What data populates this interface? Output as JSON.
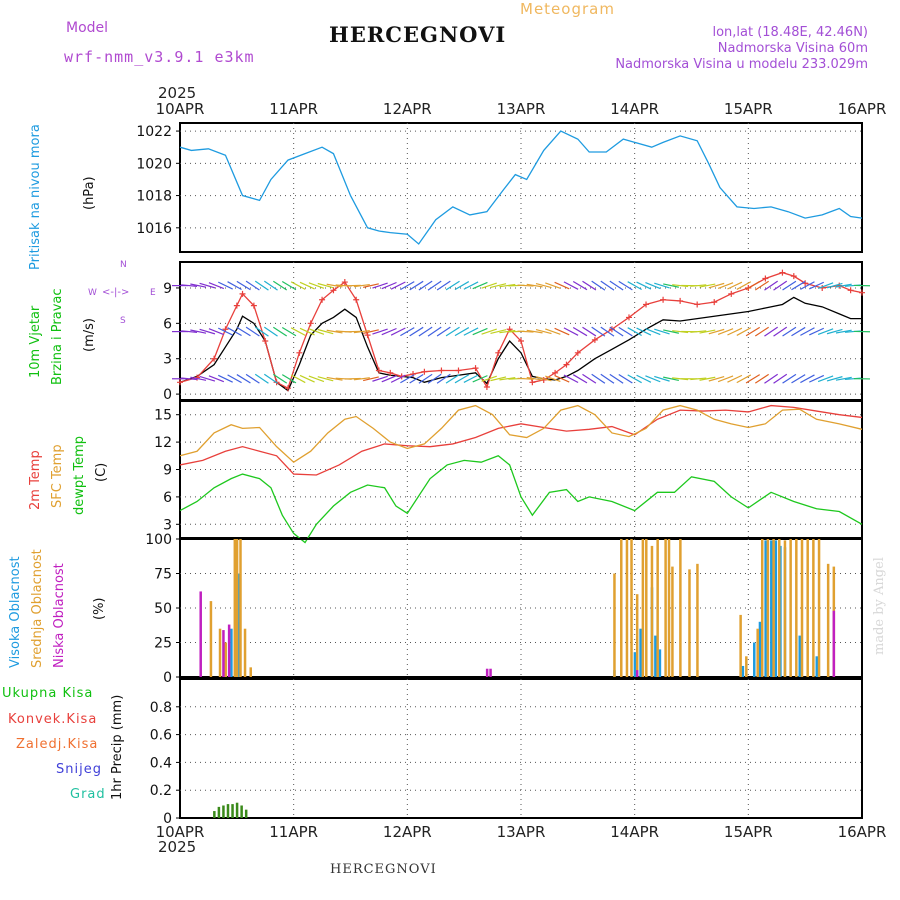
{
  "header": {
    "model_label": "Model",
    "model_name": "wrf-nmm_v3.9.1 e3km",
    "title": "HERCEGNOVI",
    "meteogram_label": "Meteogram",
    "lonlat": "lon,lat (18.48E, 42.46N)",
    "altitude": "Nadmorska Visina 60m",
    "model_altitude": "Nadmorska Visina u modelu 233.029m",
    "year_top": "2025"
  },
  "footer": {
    "year_bottom": "2025",
    "station": "HERCEGNOVI",
    "credit": "made by Angel"
  },
  "colors": {
    "pressure": "#1e9be0",
    "temp2m": "#e8403c",
    "sfc_temp": "#e0a030",
    "dewpt": "#1ec81e",
    "wind_speed": "#000000",
    "wind_gust": "#e8403c",
    "cloud_high": "#1e9be0",
    "cloud_mid": "#e0a030",
    "cloud_low": "#c020c0",
    "precip": "#3a8a1a",
    "precip2": "#c85020"
  },
  "chart_data": [
    {
      "type": "line",
      "panel": "pressure",
      "title": "Pritisak na nivou mora",
      "ylabel": "(hPa)",
      "x_tick_labels": [
        "10APR",
        "11APR",
        "12APR",
        "13APR",
        "14APR",
        "15APR",
        "16APR"
      ],
      "xlim_days": [
        0,
        6
      ],
      "ylim": [
        1014.5,
        1022.5
      ],
      "y_ticks": [
        1016,
        1018,
        1020,
        1022
      ],
      "series": [
        {
          "name": "Pritisak na nivou mora",
          "color": "#1e9be0",
          "x": [
            0,
            0.1,
            0.25,
            0.4,
            0.55,
            0.7,
            0.8,
            0.95,
            1.1,
            1.25,
            1.35,
            1.5,
            1.65,
            1.75,
            1.85,
            2.0,
            2.1,
            2.25,
            2.4,
            2.55,
            2.7,
            2.85,
            2.95,
            3.05,
            3.2,
            3.35,
            3.5,
            3.6,
            3.75,
            3.9,
            4.0,
            4.15,
            4.25,
            4.4,
            4.55,
            4.65,
            4.75,
            4.9,
            5.05,
            5.2,
            5.35,
            5.5,
            5.65,
            5.8,
            5.9,
            6.0
          ],
          "y": [
            1021.0,
            1020.8,
            1020.9,
            1020.5,
            1018.0,
            1017.7,
            1019.0,
            1020.2,
            1020.6,
            1021.0,
            1020.6,
            1018.0,
            1016.0,
            1015.8,
            1015.7,
            1015.6,
            1015.0,
            1016.5,
            1017.3,
            1016.8,
            1017.0,
            1018.4,
            1019.3,
            1019.0,
            1020.8,
            1022.0,
            1021.5,
            1020.7,
            1020.7,
            1021.5,
            1021.3,
            1021.0,
            1021.3,
            1021.7,
            1021.4,
            1020.0,
            1018.5,
            1017.3,
            1017.2,
            1017.3,
            1017.0,
            1016.6,
            1016.8,
            1017.2,
            1016.7,
            1016.6
          ]
        }
      ]
    },
    {
      "type": "line",
      "panel": "wind",
      "title": "10m Vjetar Brzina i Pravac",
      "ylabel": "(m/s)",
      "compass": {
        "n": "N",
        "w": "W",
        "e": "E",
        "s": "S"
      },
      "ylim": [
        -0.5,
        11.2
      ],
      "y_ticks": [
        0,
        3,
        6,
        9
      ],
      "series": [
        {
          "name": "Brzina",
          "color": "#000000",
          "x": [
            0,
            0.15,
            0.3,
            0.4,
            0.5,
            0.55,
            0.65,
            0.75,
            0.85,
            0.95,
            1.05,
            1.15,
            1.25,
            1.35,
            1.45,
            1.55,
            1.65,
            1.75,
            1.85,
            1.95,
            2.05,
            2.15,
            2.3,
            2.45,
            2.6,
            2.7,
            2.8,
            2.9,
            3.0,
            3.1,
            3.2,
            3.3,
            3.4,
            3.5,
            3.65,
            3.8,
            3.95,
            4.1,
            4.25,
            4.4,
            4.55,
            4.7,
            4.85,
            5.0,
            5.15,
            5.3,
            5.4,
            5.5,
            5.65,
            5.8,
            5.9,
            6.0
          ],
          "y": [
            1.0,
            1.5,
            2.5,
            4.0,
            5.5,
            6.6,
            6.0,
            4.5,
            1.0,
            0.3,
            2.5,
            5.0,
            6.0,
            6.5,
            7.2,
            6.5,
            4.0,
            1.8,
            1.6,
            1.5,
            1.4,
            1.0,
            1.4,
            1.6,
            1.8,
            0.9,
            3.0,
            4.5,
            3.5,
            1.5,
            1.3,
            1.2,
            1.5,
            2.0,
            3.0,
            3.8,
            4.6,
            5.5,
            6.3,
            6.2,
            6.4,
            6.6,
            6.8,
            7.0,
            7.3,
            7.6,
            8.2,
            7.7,
            7.4,
            6.8,
            6.4,
            6.4
          ]
        },
        {
          "name": "Udar",
          "color": "#e8403c",
          "x": [
            0,
            0.15,
            0.3,
            0.4,
            0.5,
            0.55,
            0.65,
            0.75,
            0.85,
            0.95,
            1.05,
            1.15,
            1.25,
            1.35,
            1.45,
            1.55,
            1.65,
            1.75,
            1.85,
            1.95,
            2.05,
            2.15,
            2.3,
            2.45,
            2.6,
            2.7,
            2.8,
            2.9,
            3.0,
            3.1,
            3.2,
            3.3,
            3.4,
            3.5,
            3.65,
            3.8,
            3.95,
            4.1,
            4.25,
            4.4,
            4.55,
            4.7,
            4.85,
            5.0,
            5.15,
            5.3,
            5.4,
            5.5,
            5.65,
            5.8,
            5.9,
            6.0
          ],
          "y": [
            1.0,
            1.4,
            3.0,
            5.5,
            7.5,
            8.5,
            7.5,
            4.5,
            1.0,
            0.5,
            3.5,
            6.0,
            8.0,
            8.8,
            9.5,
            8.0,
            5.0,
            2.0,
            1.8,
            1.5,
            1.7,
            1.9,
            2.0,
            2.0,
            2.2,
            0.6,
            3.5,
            5.5,
            4.5,
            1.0,
            1.2,
            1.8,
            2.5,
            3.5,
            4.6,
            5.5,
            6.5,
            7.6,
            8.0,
            7.9,
            7.6,
            7.8,
            8.5,
            9.0,
            9.8,
            10.3,
            10.0,
            9.4,
            9.0,
            9.2,
            8.8,
            8.6
          ]
        }
      ]
    },
    {
      "type": "line",
      "panel": "temperature",
      "title": "2m Temp / SFC Temp / dewpt Temp",
      "ylabel": "(C)",
      "ylim": [
        1.5,
        16.5
      ],
      "y_ticks": [
        3,
        6,
        9,
        12,
        15
      ],
      "series": [
        {
          "name": "2m Temp",
          "color": "#e8403c",
          "x": [
            0,
            0.2,
            0.4,
            0.55,
            0.7,
            0.85,
            1.0,
            1.2,
            1.4,
            1.6,
            1.8,
            2.0,
            2.2,
            2.4,
            2.6,
            2.8,
            3.0,
            3.2,
            3.4,
            3.6,
            3.8,
            4.0,
            4.2,
            4.4,
            4.6,
            4.8,
            5.0,
            5.2,
            5.4,
            5.6,
            5.8,
            6.0
          ],
          "y": [
            9.5,
            10.0,
            11.0,
            11.5,
            11.0,
            10.5,
            8.5,
            8.4,
            9.5,
            11.0,
            11.8,
            11.6,
            11.5,
            11.8,
            12.5,
            13.5,
            14.0,
            13.6,
            13.2,
            13.4,
            13.7,
            12.8,
            14.5,
            15.5,
            15.4,
            15.5,
            15.3,
            16.0,
            15.8,
            15.4,
            15.0,
            14.7
          ]
        },
        {
          "name": "SFC Temp",
          "color": "#e0a030",
          "x": [
            0,
            0.15,
            0.3,
            0.45,
            0.55,
            0.7,
            0.85,
            1.0,
            1.15,
            1.3,
            1.45,
            1.55,
            1.7,
            1.85,
            2.0,
            2.15,
            2.3,
            2.45,
            2.6,
            2.75,
            2.9,
            3.05,
            3.2,
            3.35,
            3.5,
            3.65,
            3.8,
            3.95,
            4.1,
            4.25,
            4.4,
            4.55,
            4.7,
            4.85,
            5.0,
            5.15,
            5.3,
            5.45,
            5.6,
            5.8,
            6.0
          ],
          "y": [
            10.5,
            11.0,
            13.0,
            13.9,
            13.5,
            13.6,
            11.5,
            9.8,
            11.0,
            13.0,
            14.5,
            14.8,
            13.5,
            12.0,
            11.3,
            11.8,
            13.5,
            15.5,
            16.0,
            15.0,
            12.8,
            12.5,
            13.5,
            15.5,
            16.0,
            15.0,
            13.0,
            12.6,
            13.5,
            15.5,
            16.0,
            15.5,
            14.5,
            14.0,
            13.6,
            14.0,
            15.5,
            15.6,
            14.5,
            14.0,
            13.4
          ]
        },
        {
          "name": "dewpt Temp",
          "color": "#1ec81e",
          "x": [
            0,
            0.15,
            0.3,
            0.45,
            0.55,
            0.7,
            0.8,
            0.9,
            1.0,
            1.1,
            1.2,
            1.35,
            1.5,
            1.65,
            1.8,
            1.9,
            2.0,
            2.2,
            2.35,
            2.5,
            2.65,
            2.8,
            2.9,
            3.0,
            3.1,
            3.25,
            3.4,
            3.5,
            3.6,
            3.8,
            4.0,
            4.2,
            4.35,
            4.5,
            4.7,
            4.85,
            5.0,
            5.2,
            5.4,
            5.6,
            5.8,
            6.0
          ],
          "y": [
            4.5,
            5.5,
            7.0,
            8.0,
            8.5,
            8.0,
            7.0,
            4.0,
            2.0,
            1.0,
            3.0,
            5.0,
            6.5,
            7.3,
            7.0,
            5.0,
            4.2,
            8.0,
            9.5,
            10.0,
            9.8,
            10.5,
            9.5,
            6.0,
            4.0,
            6.5,
            6.8,
            5.5,
            6.0,
            5.5,
            4.5,
            6.5,
            6.5,
            8.2,
            7.7,
            6.0,
            4.8,
            6.5,
            5.5,
            4.7,
            4.4,
            3.0
          ]
        }
      ]
    },
    {
      "type": "bar",
      "panel": "clouds",
      "title": "Visoka Oblacnost / Srednja Oblacnost / Niska Oblacnost",
      "ylabel": "(%)",
      "ylim": [
        0,
        100
      ],
      "y_ticks": [
        0,
        25,
        50,
        75,
        100
      ],
      "series": [
        {
          "name": "Visoka Oblacnost",
          "color": "#1e9be0",
          "x": [
            0.45,
            0.5,
            0.52,
            3.82,
            4.0,
            4.05,
            4.15,
            4.18,
            4.22,
            4.95,
            5.05,
            5.1,
            5.15,
            5.2,
            5.24,
            5.28,
            5.32,
            5.45,
            5.6
          ],
          "y": [
            35,
            40,
            75,
            5,
            18,
            35,
            65,
            30,
            20,
            8,
            25,
            40,
            99,
            99,
            99,
            95,
            94,
            30,
            15
          ]
        },
        {
          "name": "Srednja Oblacnost",
          "color": "#e0a030",
          "x": [
            0.27,
            0.35,
            0.4,
            0.48,
            0.5,
            0.53,
            0.57,
            0.62,
            3.82,
            3.88,
            3.93,
            3.97,
            4.02,
            4.07,
            4.1,
            4.15,
            4.2,
            4.27,
            4.3,
            4.33,
            4.4,
            4.48,
            4.55,
            4.93,
            4.98,
            5.08,
            5.12,
            5.17,
            5.22,
            5.27,
            5.32,
            5.37,
            5.42,
            5.47,
            5.52,
            5.57,
            5.62,
            5.7,
            5.75
          ],
          "y": [
            55,
            35,
            25,
            100,
            100,
            100,
            35,
            7,
            75,
            100,
            100,
            100,
            60,
            100,
            100,
            95,
            100,
            100,
            100,
            80,
            100,
            78,
            82,
            45,
            15,
            35,
            100,
            100,
            100,
            100,
            99,
            100,
            100,
            100,
            100,
            100,
            100,
            82,
            80
          ]
        },
        {
          "name": "Niska Oblacnost",
          "color": "#c020c0",
          "x": [
            0.18,
            0.38,
            0.43,
            2.7,
            2.73,
            4.02,
            5.75
          ],
          "y": [
            62,
            34,
            38,
            6,
            6,
            5,
            48
          ]
        }
      ]
    },
    {
      "type": "bar",
      "panel": "precip",
      "title": "Ukupna Kisa / Konvek.Kisa / Zaledj.Kisa / Snijeg / Grad",
      "ylabel": "1hr Precip (mm)",
      "ylim": [
        0,
        1.0
      ],
      "y_ticks": [
        0,
        0.2,
        0.4,
        0.6,
        0.8
      ],
      "y_tick_labels": [
        "0",
        "0.2",
        "0.4",
        "0.6",
        "0.8"
      ],
      "series": [
        {
          "name": "Ukupna Kisa",
          "color": "#3a8a1a",
          "x": [
            0.3,
            0.34,
            0.38,
            0.42,
            0.46,
            0.5,
            0.54,
            0.58
          ],
          "y": [
            0.05,
            0.08,
            0.09,
            0.1,
            0.1,
            0.11,
            0.09,
            0.06
          ]
        }
      ]
    }
  ],
  "side_labels": {
    "pressure": "Pritisak na nivou mora",
    "pressure_unit": "(hPa)",
    "wind1": "10m Vjetar",
    "wind2": "Brzina i Pravac",
    "wind_unit": "(m/s)",
    "temp_2m": "2m Temp",
    "temp_sfc": "SFC Temp",
    "temp_dew": "dewpt Temp",
    "temp_unit": "(C)",
    "cloud_high": "Visoka Oblacnost",
    "cloud_mid": "Srednja Oblacnost",
    "cloud_low": "Niska Oblacnost",
    "cloud_unit": "(%)",
    "precip_total": "Ukupna Kisa",
    "precip_conv": "Konvek.Kisa",
    "precip_frz": "Zaledj.Kisa",
    "precip_snow": "Snijeg",
    "precip_hail": "Grad",
    "precip_unit": "1hr Precip (mm)"
  }
}
